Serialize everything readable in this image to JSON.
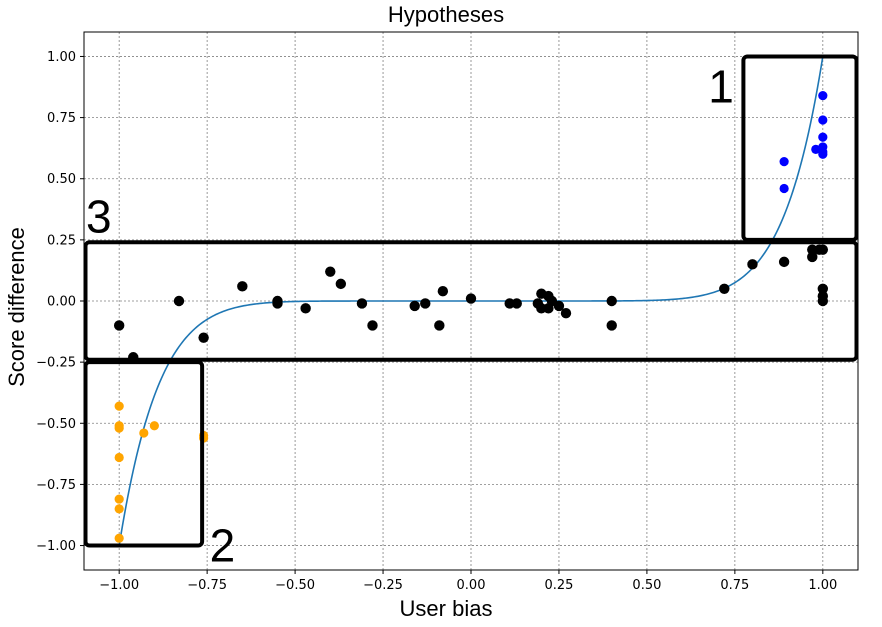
{
  "chart_data": {
    "type": "scatter",
    "title": "Hypotheses",
    "xlabel": "User bias",
    "ylabel": "Score difference",
    "xlim": [
      -1.1,
      1.1
    ],
    "ylim": [
      -1.1,
      1.1
    ],
    "xticks": [
      -1.0,
      -0.75,
      -0.5,
      -0.25,
      0.0,
      0.25,
      0.5,
      0.75,
      1.0
    ],
    "yticks": [
      -1.0,
      -0.75,
      -0.5,
      -0.25,
      0.0,
      0.25,
      0.5,
      0.75,
      1.0
    ],
    "xtick_labels": [
      "−1.00",
      "−0.75",
      "−0.50",
      "−0.25",
      "0.00",
      "0.25",
      "0.50",
      "0.75",
      "1.00"
    ],
    "ytick_labels": [
      "−1.00",
      "−0.75",
      "−0.50",
      "−0.25",
      "0.00",
      "0.25",
      "0.50",
      "0.75",
      "1.00"
    ],
    "grid": true,
    "curve": {
      "color": "#1f77b4",
      "type": "y = x^9",
      "x_range": [
        -1.0,
        1.0
      ]
    },
    "series": [
      {
        "color": "#0000ff",
        "points": [
          [
            0.89,
            0.57
          ],
          [
            0.89,
            0.46
          ],
          [
            1.0,
            0.84
          ],
          [
            1.0,
            0.74
          ],
          [
            1.0,
            0.67
          ],
          [
            0.98,
            0.62
          ],
          [
            1.0,
            0.63
          ],
          [
            1.0,
            0.61
          ],
          [
            1.0,
            0.6
          ]
        ]
      },
      {
        "color": "#ffa500",
        "points": [
          [
            -1.0,
            -0.43
          ],
          [
            -1.0,
            -0.51
          ],
          [
            -1.0,
            -0.52
          ],
          [
            -1.0,
            -0.64
          ],
          [
            -1.0,
            -0.81
          ],
          [
            -1.0,
            -0.85
          ],
          [
            -1.0,
            -0.97
          ],
          [
            -0.93,
            -0.54
          ],
          [
            -0.9,
            -0.51
          ],
          [
            -0.76,
            -0.55
          ],
          [
            -0.76,
            -0.56
          ]
        ]
      },
      {
        "color": "#000000",
        "points": [
          [
            -1.0,
            -0.1
          ],
          [
            -0.96,
            -0.23
          ],
          [
            -0.83,
            0.0
          ],
          [
            -0.76,
            -0.15
          ],
          [
            -0.65,
            0.06
          ],
          [
            -0.55,
            -0.01
          ],
          [
            -0.55,
            0.0
          ],
          [
            -0.47,
            -0.03
          ],
          [
            -0.4,
            0.12
          ],
          [
            -0.37,
            0.07
          ],
          [
            -0.31,
            -0.01
          ],
          [
            -0.28,
            -0.1
          ],
          [
            -0.16,
            -0.02
          ],
          [
            -0.13,
            -0.01
          ],
          [
            -0.09,
            -0.1
          ],
          [
            -0.08,
            0.04
          ],
          [
            0.0,
            0.01
          ],
          [
            0.11,
            -0.01
          ],
          [
            0.13,
            -0.01
          ],
          [
            0.19,
            -0.01
          ],
          [
            0.2,
            0.03
          ],
          [
            0.2,
            -0.03
          ],
          [
            0.22,
            0.02
          ],
          [
            0.22,
            -0.03
          ],
          [
            0.23,
            0.0
          ],
          [
            0.25,
            -0.02
          ],
          [
            0.27,
            -0.05
          ],
          [
            0.4,
            0.0
          ],
          [
            0.4,
            -0.1
          ],
          [
            0.72,
            0.05
          ],
          [
            0.8,
            0.15
          ],
          [
            0.89,
            0.16
          ],
          [
            0.97,
            0.21
          ],
          [
            0.97,
            0.18
          ],
          [
            0.99,
            0.21
          ],
          [
            1.0,
            0.21
          ],
          [
            1.0,
            0.05
          ],
          [
            1.0,
            0.02
          ],
          [
            1.0,
            0.0
          ]
        ]
      }
    ],
    "regions": [
      {
        "label": "1",
        "x": [
          0.77,
          1.1
        ],
        "y": [
          0.25,
          1.0
        ]
      },
      {
        "label": "2",
        "x": [
          -1.1,
          -0.76
        ],
        "y": [
          -1.0,
          -0.25
        ]
      },
      {
        "label": "3",
        "x": [
          -1.1,
          1.1
        ],
        "y": [
          -0.24,
          0.24
        ]
      }
    ]
  }
}
